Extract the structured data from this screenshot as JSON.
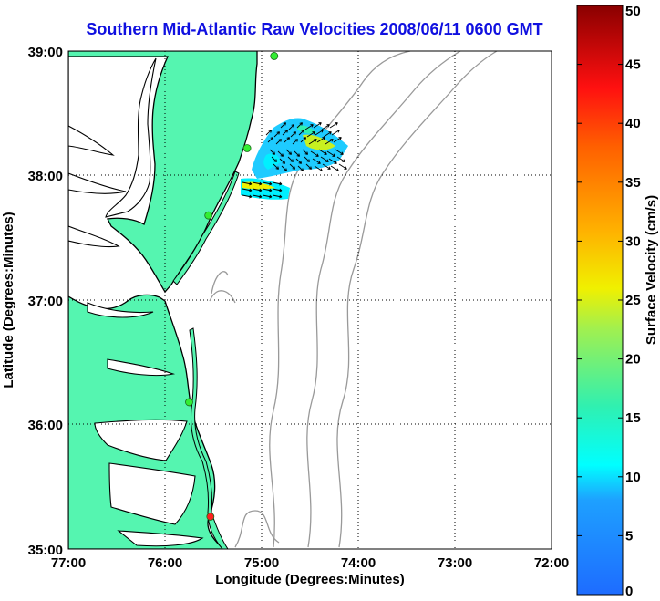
{
  "title": "Southern Mid-Atlantic Raw Velocities 2008/06/11 0600 GMT",
  "map": {
    "xlabel": "Longitude (Degrees:Minutes)",
    "ylabel": "Latitude (Degrees:Minutes)",
    "x_ticks": [
      "77:00",
      "76:00",
      "75:00",
      "74:00",
      "73:00",
      "72:00"
    ],
    "y_ticks": [
      "39:00",
      "38:00",
      "37:00",
      "36:00",
      "35:00"
    ],
    "x_range": [
      -77,
      -72
    ],
    "y_range": [
      35,
      39
    ],
    "grid": "dotted",
    "colors": {
      "land": "#55f5b0",
      "coast": "#000000",
      "bathymetry": "#999999",
      "title": "#1010e0"
    },
    "stations": [
      {
        "lon": -74.87,
        "lat": 38.96,
        "status": "active"
      },
      {
        "lon": -75.15,
        "lat": 38.22,
        "status": "active"
      },
      {
        "lon": -75.55,
        "lat": 37.68,
        "status": "active"
      },
      {
        "lon": -75.75,
        "lat": 36.18,
        "status": "active"
      },
      {
        "lon": -75.53,
        "lat": 35.26,
        "status": "inactive"
      }
    ],
    "status_colors": {
      "active": "#33ee33",
      "inactive": "#ff2020"
    }
  },
  "colorbar": {
    "label": "Surface Velocity (cm/s)",
    "ticks": [
      "0",
      "5",
      "10",
      "15",
      "20",
      "25",
      "30",
      "35",
      "40",
      "45",
      "50"
    ],
    "range": [
      0,
      50
    ]
  }
}
